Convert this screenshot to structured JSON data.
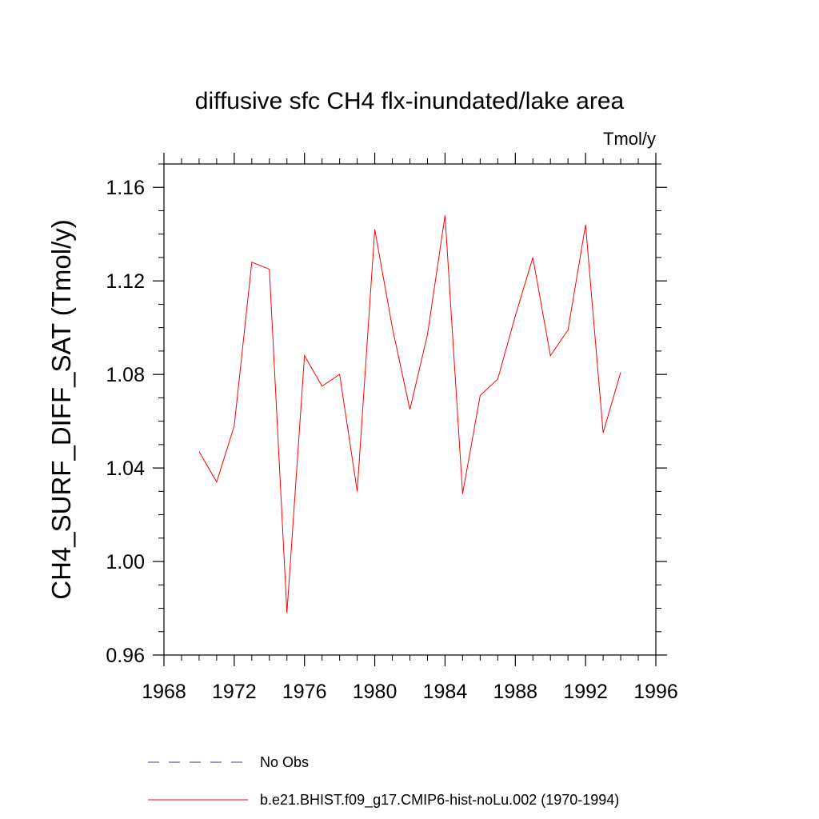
{
  "chart_data": {
    "type": "line",
    "title": "diffusive sfc CH4 flx-inundated/lake area",
    "units": "Tmol/y",
    "xlabel": "",
    "ylabel": "CH4_SURF_DIFF_SAT  (Tmol/y)",
    "xlim": [
      1968,
      1996
    ],
    "ylim": [
      0.96,
      1.17
    ],
    "x_ticks": [
      1968,
      1972,
      1976,
      1980,
      1984,
      1988,
      1992,
      1996
    ],
    "x_tick_labels": [
      "1968",
      "1972",
      "1976",
      "1980",
      "1984",
      "1988",
      "1992",
      "1996"
    ],
    "y_ticks": [
      0.96,
      1.0,
      1.04,
      1.08,
      1.12,
      1.16
    ],
    "y_tick_labels": [
      "0.96",
      "1.00",
      "1.04",
      "1.08",
      "1.12",
      "1.16"
    ],
    "grid": false,
    "legend_position": "bottom",
    "series": [
      {
        "name": "b.e21.BHIST.f09_g17.CMIP6-hist-noLu.002 (1970-1994)",
        "color": "#ff0000",
        "style": "solid",
        "x": [
          1970,
          1971,
          1972,
          1973,
          1974,
          1975,
          1976,
          1977,
          1978,
          1979,
          1980,
          1981,
          1982,
          1983,
          1984,
          1985,
          1986,
          1987,
          1988,
          1989,
          1990,
          1991,
          1992,
          1993,
          1994
        ],
        "values": [
          1.047,
          1.034,
          1.058,
          1.128,
          1.125,
          0.978,
          1.088,
          1.075,
          1.08,
          1.03,
          1.142,
          1.1,
          1.065,
          1.097,
          1.148,
          1.029,
          1.071,
          1.078,
          1.105,
          1.13,
          1.088,
          1.099,
          1.144,
          1.055,
          1.081
        ]
      }
    ],
    "legend": [
      {
        "label": "No Obs",
        "color": "#3a3aa0",
        "style": "dashed"
      },
      {
        "label": "b.e21.BHIST.f09_g17.CMIP6-hist-noLu.002 (1970-1994)",
        "color": "#ff0000",
        "style": "solid"
      }
    ]
  }
}
